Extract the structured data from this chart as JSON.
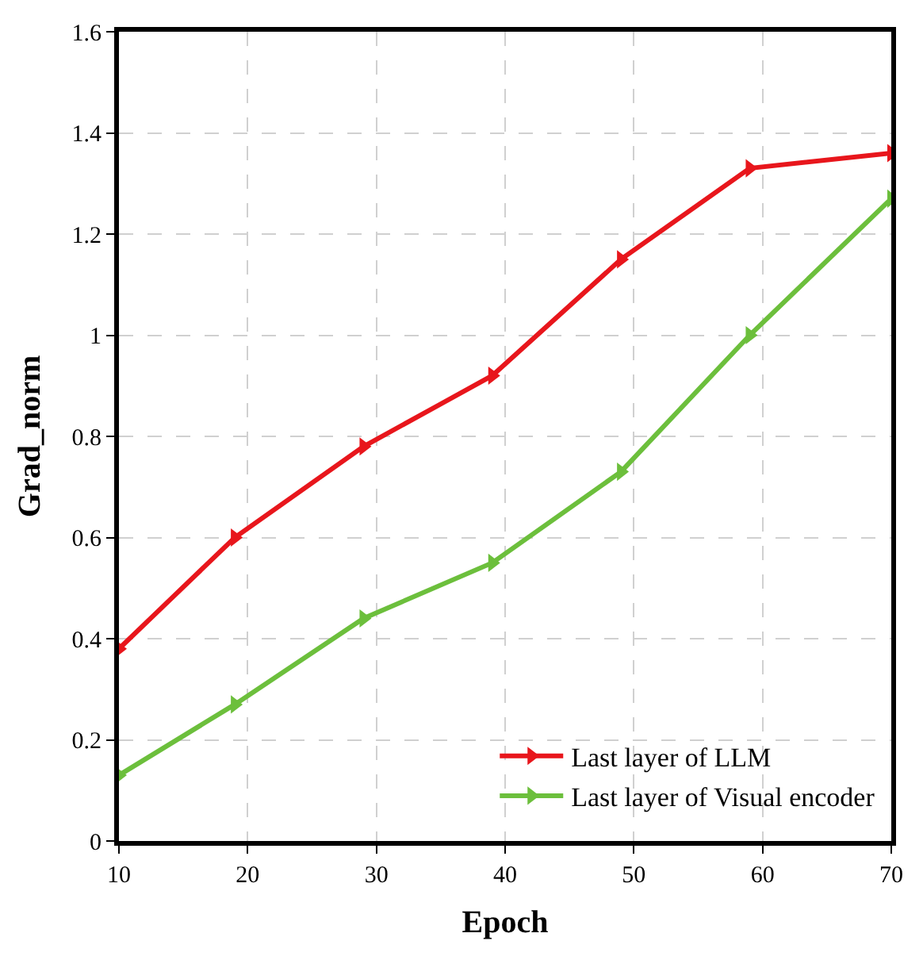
{
  "chart_data": {
    "type": "line",
    "xlabel": "Epoch",
    "ylabel": "Grad_norm",
    "x": [
      10,
      19,
      29,
      39,
      49,
      59,
      70
    ],
    "series": [
      {
        "name": "Last layer of LLM",
        "color": "#e8161c",
        "values": [
          0.38,
          0.6,
          0.78,
          0.92,
          1.15,
          1.33,
          1.36
        ]
      },
      {
        "name": "Last layer of Visual encoder",
        "color": "#6cbf3c",
        "values": [
          0.13,
          0.27,
          0.44,
          0.55,
          0.73,
          1.0,
          1.27
        ]
      }
    ],
    "xlim": [
      10,
      70
    ],
    "xticks": [
      10,
      20,
      30,
      40,
      50,
      60,
      70
    ],
    "ylim": [
      0,
      1.6
    ],
    "yticks": [
      0,
      0.2,
      0.4,
      0.6,
      0.8,
      1,
      1.2,
      1.4,
      1.6
    ],
    "grid": true,
    "legend": "bottom right",
    "marker": "triangle",
    "line_style": "solid"
  }
}
